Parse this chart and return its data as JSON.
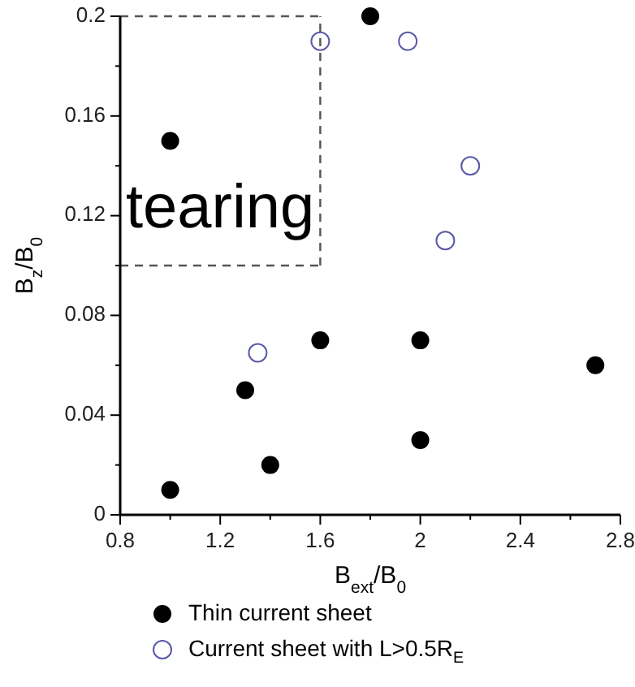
{
  "chart_data": {
    "type": "scatter",
    "xlabel": "B$_{ext}$/B$_{0}$",
    "ylabel": "B$_{z}$/B$_{0}$",
    "xlim": [
      0.8,
      2.8
    ],
    "ylim": [
      0,
      0.2
    ],
    "xticks": [
      0.8,
      {
        "value": 1.0,
        "label": null
      },
      1.2,
      {
        "value": 1.4,
        "label": null
      },
      1.6,
      {
        "value": 1.8,
        "label": null
      },
      2,
      {
        "value": 2.2,
        "label": null
      },
      2.4,
      {
        "value": 2.6,
        "label": null
      },
      2.8
    ],
    "yticks": [
      0,
      {
        "value": 0.02,
        "label": null
      },
      0.04,
      {
        "value": 0.06,
        "label": null
      },
      0.08,
      {
        "value": 0.1,
        "label": null
      },
      0.12,
      {
        "value": 0.14,
        "label": null
      },
      0.16,
      {
        "value": 0.18,
        "label": null
      },
      0.2
    ],
    "series": [
      {
        "name": "Thin current sheet",
        "color": "#000000",
        "marker": "circle",
        "x": [
          1.0,
          1.0,
          1.3,
          1.4,
          1.6,
          1.8,
          2.0,
          2.0,
          2.7
        ],
        "values": [
          0.01,
          0.15,
          0.05,
          0.02,
          0.07,
          0.2,
          0.07,
          0.03,
          0.06
        ]
      },
      {
        "name": "Current sheet with L>0.5R$_{E}$",
        "color": "#5a5aa8",
        "marker": "circle",
        "x": [
          1.35,
          1.6,
          1.95,
          2.1,
          2.2
        ],
        "values": [
          0.065,
          0.19,
          0.19,
          0.11,
          0.14
        ]
      }
    ],
    "ref_lines": [
      {
        "axis": "x",
        "value": 1.6,
        "line_style": "dashed",
        "color": "#555555"
      },
      {
        "axis": "y",
        "value": 0.1,
        "line_style": "dashed",
        "color": "#555555"
      },
      {
        "axis": "y",
        "value": 0.2,
        "line_style": "dashed",
        "color": "#555555"
      }
    ],
    "annotations": [
      "tearing"
    ],
    "legend": "bottom",
    "grid": false
  }
}
